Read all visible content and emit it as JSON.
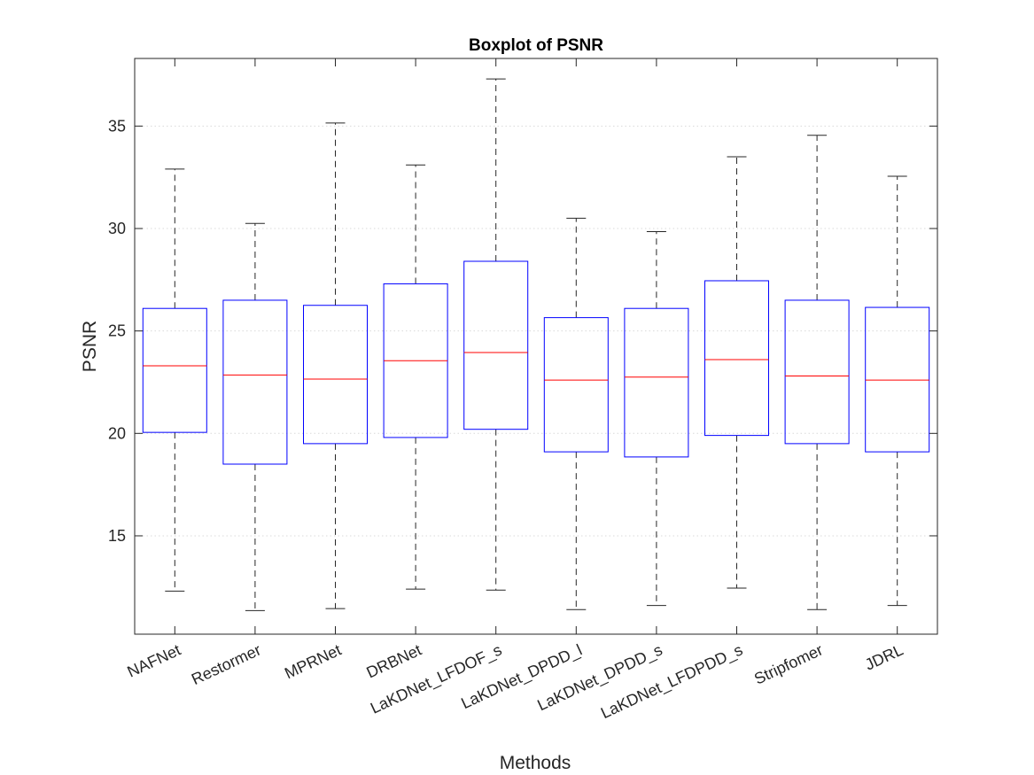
{
  "chart_data": {
    "type": "boxplot",
    "title": "Boxplot of PSNR",
    "xlabel": "Methods",
    "ylabel": "PSNR",
    "ylim": [
      10.2,
      38.3
    ],
    "yticks": [
      15,
      20,
      25,
      30,
      35
    ],
    "grid": "y-dotted",
    "colors": {
      "box": "#0000ff",
      "median": "#ff0000",
      "whisker": "#262626",
      "grid": "#d9d9d9",
      "axis": "#262626"
    },
    "categories": [
      "NAFNet",
      "Restormer",
      "MPRNet",
      "DRBNet",
      "LaKDNet_LFDOF_s",
      "LaKDNet_DPDD_l",
      "LaKDNet_DPDD_s",
      "LaKDNet_LFDPDD_s",
      "Stripfomer",
      "JDRL"
    ],
    "boxes": [
      {
        "min": 12.3,
        "q1": 20.05,
        "median": 23.3,
        "q3": 26.1,
        "max": 32.9
      },
      {
        "min": 11.35,
        "q1": 18.5,
        "median": 22.85,
        "q3": 26.5,
        "max": 30.25
      },
      {
        "min": 11.45,
        "q1": 19.5,
        "median": 22.65,
        "q3": 26.25,
        "max": 35.15
      },
      {
        "min": 12.4,
        "q1": 19.8,
        "median": 23.55,
        "q3": 27.3,
        "max": 33.1
      },
      {
        "min": 12.35,
        "q1": 20.2,
        "median": 23.95,
        "q3": 28.4,
        "max": 37.3
      },
      {
        "min": 11.4,
        "q1": 19.1,
        "median": 22.6,
        "q3": 25.65,
        "max": 30.5
      },
      {
        "min": 11.6,
        "q1": 18.85,
        "median": 22.75,
        "q3": 26.1,
        "max": 29.85
      },
      {
        "min": 12.45,
        "q1": 19.9,
        "median": 23.6,
        "q3": 27.45,
        "max": 33.5
      },
      {
        "min": 11.4,
        "q1": 19.5,
        "median": 22.8,
        "q3": 26.5,
        "max": 34.55
      },
      {
        "min": 11.6,
        "q1": 19.1,
        "median": 22.6,
        "q3": 26.15,
        "max": 32.55
      }
    ]
  }
}
